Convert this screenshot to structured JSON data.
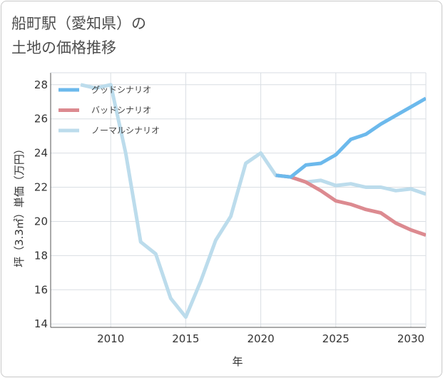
{
  "header": {
    "title_line1": "船町駅（愛知県）の",
    "title_line2": "土地の価格推移"
  },
  "chart_data": {
    "type": "line",
    "title": "船町駅（愛知県）の土地の価格推移",
    "xlabel": "年",
    "ylabel": "坪（3.3㎡）単価（万円）",
    "xlim": [
      2006,
      2031
    ],
    "ylim": [
      13.8,
      28.7
    ],
    "x_ticks": [
      2010,
      2015,
      2020,
      2025,
      2030
    ],
    "y_ticks": [
      14,
      16,
      18,
      20,
      22,
      24,
      26,
      28
    ],
    "grid": true,
    "legend_position": "top-left",
    "series": [
      {
        "name": "グッドシナリオ",
        "color": "#6cb9ec",
        "x": [
          2021,
          2022,
          2023,
          2024,
          2025,
          2026,
          2027,
          2028,
          2029,
          2030,
          2031
        ],
        "values": [
          22.7,
          22.6,
          23.3,
          23.4,
          23.9,
          24.8,
          25.1,
          25.7,
          26.2,
          26.7,
          27.2
        ]
      },
      {
        "name": "バッドシナリオ",
        "color": "#dc8a90",
        "x": [
          2021,
          2022,
          2023,
          2024,
          2025,
          2026,
          2027,
          2028,
          2029,
          2030,
          2031
        ],
        "values": [
          22.7,
          22.6,
          22.3,
          21.8,
          21.2,
          21.0,
          20.7,
          20.5,
          19.9,
          19.5,
          19.2
        ]
      },
      {
        "name": "ノーマルシナリオ",
        "color": "#bcdcec",
        "x": [
          2008,
          2009,
          2010,
          2011,
          2012,
          2013,
          2014,
          2015,
          2016,
          2017,
          2018,
          2019,
          2020,
          2021,
          2022,
          2023,
          2024,
          2025,
          2026,
          2027,
          2028,
          2029,
          2030,
          2031
        ],
        "values": [
          28.0,
          27.8,
          28.0,
          24.0,
          18.8,
          18.1,
          15.5,
          14.4,
          16.5,
          18.9,
          20.3,
          23.4,
          24.0,
          22.7,
          22.6,
          22.3,
          22.4,
          22.1,
          22.2,
          22.0,
          22.0,
          21.8,
          21.9,
          21.6
        ]
      }
    ]
  }
}
